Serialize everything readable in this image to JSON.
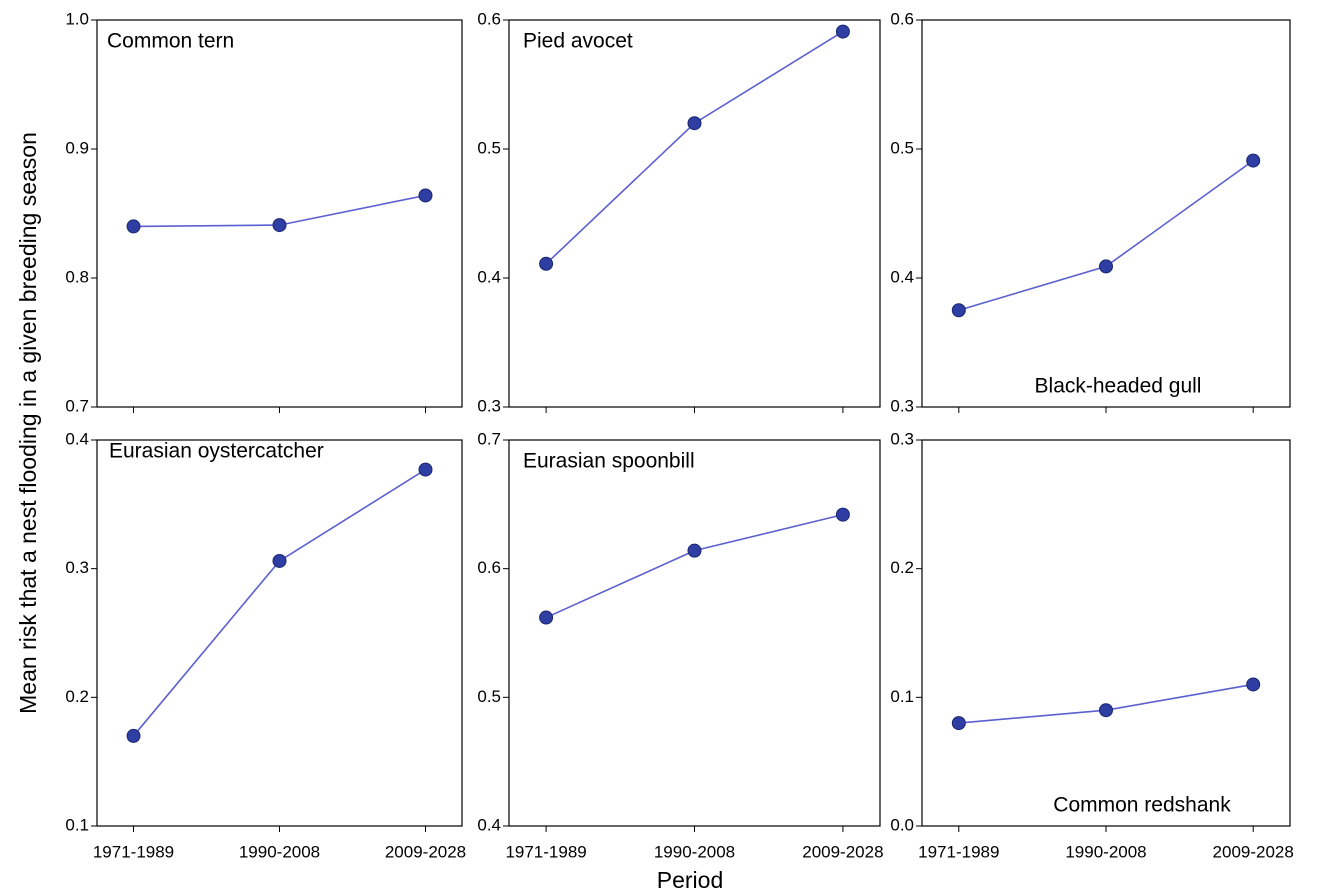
{
  "y_label": "Mean risk that a nest flooding in a given breeding season",
  "x_label": "Period",
  "chart_data": [
    {
      "type": "line",
      "title": "Common tern",
      "categories": [
        "1971-1989",
        "1990-2008",
        "2009-2028"
      ],
      "series": [
        {
          "color": "#5b5fd0",
          "values": [
            0.84,
            0.841,
            0.864
          ]
        }
      ],
      "ylim": [
        0.7,
        1.0
      ],
      "yticks": [
        0.7,
        0.8,
        0.9,
        {
          "value": 1.0,
          "label": "1.0"
        }
      ]
    },
    {
      "type": "line",
      "title": "Pied avocet",
      "categories": [
        "1971-1989",
        "1990-2008",
        "2009-2028"
      ],
      "series": [
        {
          "color": "#5b5fd0",
          "values": [
            0.411,
            0.52,
            0.591
          ]
        }
      ],
      "ylim": [
        0.3,
        0.6
      ],
      "yticks": [
        0.3,
        0.4,
        0.5,
        0.6
      ]
    },
    {
      "type": "line",
      "title": "Black-headed gull",
      "categories": [
        "1971-1989",
        "1990-2008",
        "2009-2028"
      ],
      "series": [
        {
          "color": "#5b5fd0",
          "values": [
            0.375,
            0.409,
            0.491
          ]
        }
      ],
      "ylim": [
        0.3,
        0.6
      ],
      "yticks": [
        0.3,
        0.4,
        0.5,
        0.6
      ]
    },
    {
      "type": "line",
      "title": "Eurasian oystercatcher",
      "categories": [
        "1971-1989",
        "1990-2008",
        "2009-2028"
      ],
      "series": [
        {
          "color": "#5b5fd0",
          "values": [
            0.17,
            0.306,
            0.377
          ]
        }
      ],
      "ylim": [
        0.1,
        0.4
      ],
      "yticks": [
        0.1,
        0.2,
        0.3,
        0.4
      ]
    },
    {
      "type": "line",
      "title": "Eurasian spoonbill",
      "categories": [
        "1971-1989",
        "1990-2008",
        "2009-2028"
      ],
      "series": [
        {
          "color": "#5b5fd0",
          "values": [
            0.562,
            0.614,
            0.642
          ]
        }
      ],
      "ylim": [
        0.4,
        0.7
      ],
      "yticks": [
        0.4,
        0.5,
        0.6,
        0.7
      ]
    },
    {
      "type": "line",
      "title": "Common redshank",
      "categories": [
        "1971-1989",
        "1990-2008",
        "2009-2028"
      ],
      "series": [
        {
          "color": "#5b5fd0",
          "values": [
            0.08,
            0.09,
            0.11
          ]
        }
      ],
      "ylim": [
        0,
        0.3
      ],
      "yticks": [
        {
          "value": 0,
          "label": "0.0"
        },
        0.1,
        0.2,
        0.3
      ]
    }
  ]
}
